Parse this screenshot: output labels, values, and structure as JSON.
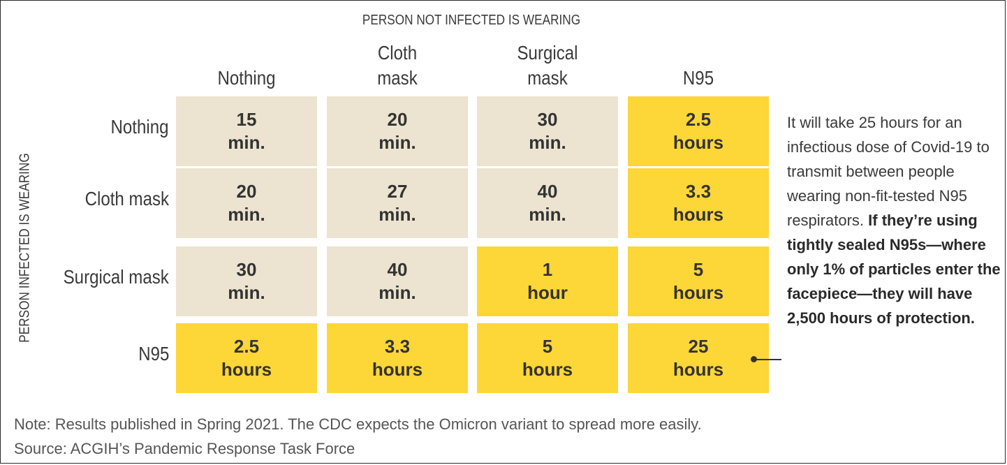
{
  "chart_data": {
    "type": "table",
    "title": "",
    "column_axis_label": "PERSON NOT INFECTED IS WEARING",
    "row_axis_label": "PERSON INFECTED IS WEARING",
    "columns": [
      {
        "line1": "",
        "line2": "Nothing"
      },
      {
        "line1": "Cloth",
        "line2": "mask"
      },
      {
        "line1": "Surgical",
        "line2": "mask"
      },
      {
        "line1": "",
        "line2": "N95"
      }
    ],
    "rows": [
      "Nothing",
      "Cloth mask",
      "Surgical mask",
      "N95"
    ],
    "cells": [
      [
        {
          "value": "15",
          "unit": "min.",
          "highlight": false
        },
        {
          "value": "20",
          "unit": "min.",
          "highlight": false
        },
        {
          "value": "30",
          "unit": "min.",
          "highlight": false
        },
        {
          "value": "2.5",
          "unit": "hours",
          "highlight": true
        }
      ],
      [
        {
          "value": "20",
          "unit": "min.",
          "highlight": false
        },
        {
          "value": "27",
          "unit": "min.",
          "highlight": false
        },
        {
          "value": "40",
          "unit": "min.",
          "highlight": false
        },
        {
          "value": "3.3",
          "unit": "hours",
          "highlight": true
        }
      ],
      [
        {
          "value": "30",
          "unit": "min.",
          "highlight": false
        },
        {
          "value": "40",
          "unit": "min.",
          "highlight": false
        },
        {
          "value": "1",
          "unit": "hour",
          "highlight": true
        },
        {
          "value": "5",
          "unit": "hours",
          "highlight": true
        }
      ],
      [
        {
          "value": "2.5",
          "unit": "hours",
          "highlight": true
        },
        {
          "value": "3.3",
          "unit": "hours",
          "highlight": true
        },
        {
          "value": "5",
          "unit": "hours",
          "highlight": true
        },
        {
          "value": "25",
          "unit": "hours",
          "highlight": true
        }
      ]
    ],
    "annotation": {
      "plain": "It will take 25 hours for an infectious dose of Covid-19 to transmit between people wearing non-fit-tested N95 respirators.",
      "bold": "If they’re using tightly sealed N95s—where only 1% of particles enter the facepiece—they will have 2,500 hours of protection."
    }
  },
  "colors": {
    "low_protection": "#ece3d0",
    "high_protection": "#fdd638"
  },
  "footer": {
    "note": "Note: Results published in Spring 2021. The CDC expects the Omicron variant to spread more easily.",
    "source": "Source: ACGIH’s Pandemic Response Task Force"
  }
}
